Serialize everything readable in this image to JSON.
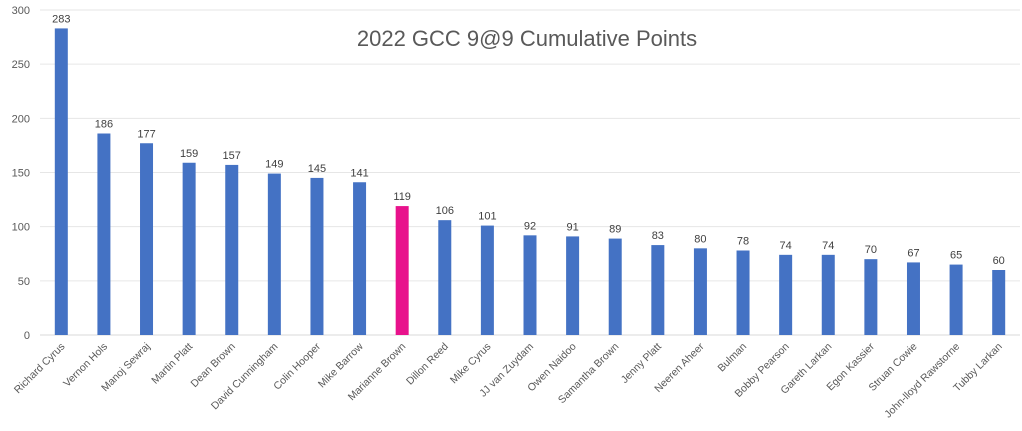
{
  "chart_data": {
    "type": "bar",
    "title": "2022 GCC 9@9 Cumulative Points",
    "xlabel": "",
    "ylabel": "",
    "ylim": [
      0,
      300
    ],
    "yticks": [
      0,
      50,
      100,
      150,
      200,
      250,
      300
    ],
    "grid": true,
    "legend": "none",
    "bar_color": "#4472C4",
    "highlight_color": "#E8128C",
    "highlight_index": 8,
    "categories": [
      "Richard Cyrus",
      "Vernon Hols",
      "Manoj Sewraj",
      "Martin Platt",
      "Dean Brown",
      "David Cunningham",
      "Colin Hooper",
      "Mike Barrow",
      "Marianne Brown",
      "Dillon Reed",
      "Mike Cyrus",
      "JJ van Zuydam",
      "Owen Naidoo",
      "Samantha Brown",
      "Jenny Platt",
      "Neeren Aheer",
      "Bulman",
      "Bobby Pearson",
      "Gareth Larkan",
      "Egon Kassier",
      "Struan Cowie",
      "John-lloyd Rawstorne",
      "Tubby Larkan"
    ],
    "values": [
      283,
      186,
      177,
      159,
      157,
      149,
      145,
      141,
      119,
      106,
      101,
      92,
      91,
      89,
      83,
      80,
      78,
      74,
      74,
      70,
      67,
      65,
      60
    ]
  }
}
